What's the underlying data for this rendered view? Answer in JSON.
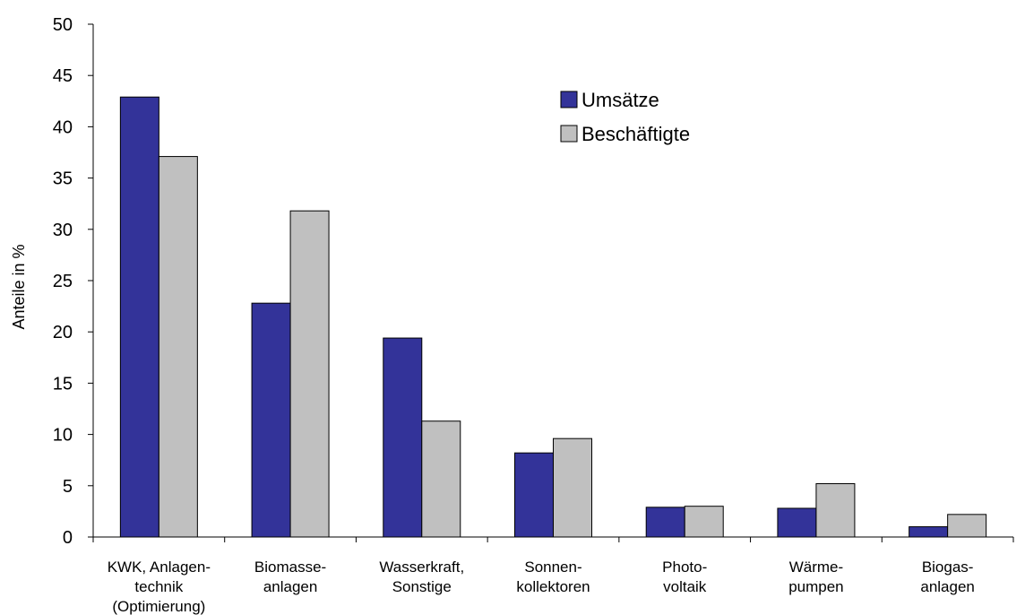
{
  "chart_data": {
    "type": "bar",
    "categories": [
      [
        "KWK, Anlagen-",
        "technik",
        "(Optimierung)"
      ],
      [
        "Biomasse-",
        "anlagen"
      ],
      [
        "Wasserkraft,",
        "Sonstige"
      ],
      [
        "Sonnen-",
        "kollektoren"
      ],
      [
        "Photo-",
        "voltaik"
      ],
      [
        "Wärme-",
        "pumpen"
      ],
      [
        "Biogas-",
        "anlagen"
      ]
    ],
    "series": [
      {
        "name": "Umsätze",
        "color": "#333399",
        "values": [
          42.9,
          22.8,
          19.4,
          8.2,
          2.9,
          2.8,
          1.0
        ]
      },
      {
        "name": "Beschäftigte",
        "color": "#c0c0c0",
        "values": [
          37.1,
          31.8,
          11.3,
          9.6,
          3.0,
          5.2,
          2.2
        ]
      }
    ],
    "ylabel": "Anteile in %",
    "ylim": [
      0,
      50
    ],
    "yticks": [
      "0",
      "5",
      "10",
      "15",
      "20",
      "25",
      "30",
      "35",
      "40",
      "45",
      "50"
    ],
    "grid": false,
    "legend_position": "top-right"
  }
}
